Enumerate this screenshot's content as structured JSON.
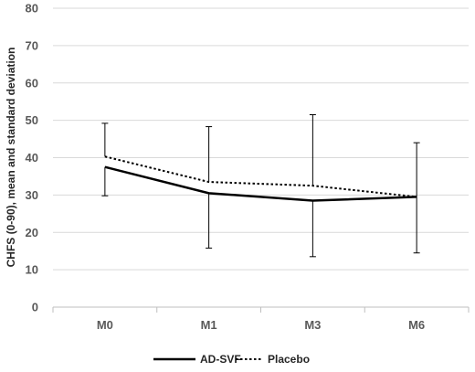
{
  "chart_data": {
    "type": "line",
    "title": "",
    "xlabel": "",
    "ylabel": "CHFS (0-90), mean and standard deviation",
    "categories": [
      "M0",
      "M1",
      "M3",
      "M6"
    ],
    "ylim": [
      0,
      80
    ],
    "yticks": [
      0,
      10,
      20,
      30,
      40,
      50,
      60,
      70,
      80
    ],
    "grid": "horizontal",
    "legend_position": "bottom",
    "series": [
      {
        "name": "AD-SVF",
        "style": "solid",
        "color": "#000000",
        "values": [
          37.5,
          30.5,
          28.5,
          29.5
        ],
        "error_low": [
          29.8,
          15.8,
          13.5,
          14.5
        ]
      },
      {
        "name": "Placebo",
        "style": "dotted",
        "color": "#000000",
        "values": [
          40.3,
          33.5,
          32.5,
          29.5
        ],
        "error_high": [
          49.2,
          48.3,
          51.5,
          44.0
        ]
      }
    ]
  }
}
